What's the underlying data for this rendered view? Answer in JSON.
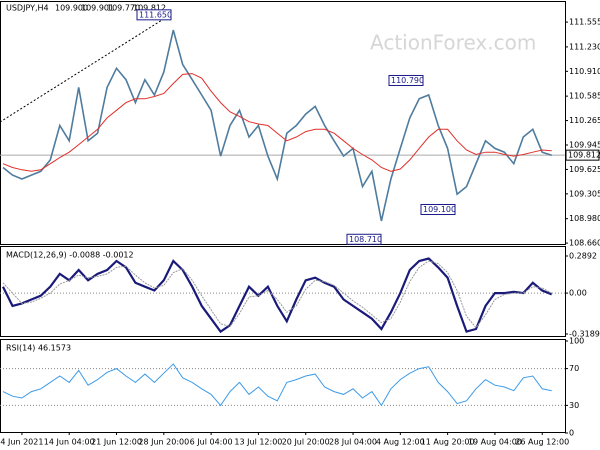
{
  "chart_data": [
    {
      "type": "line",
      "header": [
        "USDJPY,H4",
        "109.900",
        "109.901",
        "109.770",
        "109.812"
      ],
      "watermark": "ActionForex.com",
      "categories": [
        null,
        null,
        "4 Jun 2021",
        null,
        null,
        null,
        null,
        "14 Jun 04:00",
        null,
        null,
        null,
        null,
        "21 Jun 12:00",
        null,
        null,
        null,
        null,
        "28 Jun 20:00",
        null,
        null,
        null,
        null,
        "6 Jul 04:00",
        null,
        null,
        null,
        null,
        "13 Jul 12:00",
        null,
        null,
        null,
        null,
        "20 Jul 20:00",
        null,
        null,
        null,
        null,
        "28 Jul 04:00",
        null,
        null,
        null,
        null,
        "4 Aug 12:00",
        null,
        null,
        null,
        null,
        "11 Aug 20:00",
        null,
        null,
        null,
        null,
        "19 Aug 04:00",
        null,
        null,
        null,
        null,
        "26 Aug 12:00",
        null
      ],
      "series": [
        {
          "name": "USDJPY",
          "color": "#4f7c9e",
          "values": [
            109.65,
            109.55,
            109.5,
            109.55,
            109.6,
            109.75,
            110.2,
            110.0,
            110.7,
            110.0,
            110.1,
            110.7,
            110.95,
            110.8,
            110.5,
            110.8,
            110.6,
            110.9,
            111.45,
            111.0,
            110.8,
            110.6,
            110.4,
            109.8,
            110.2,
            110.4,
            110.05,
            110.2,
            109.8,
            109.5,
            110.1,
            110.2,
            110.35,
            110.45,
            110.2,
            110.0,
            109.8,
            109.9,
            109.4,
            109.6,
            108.95,
            109.5,
            109.9,
            110.3,
            110.55,
            110.6,
            110.2,
            109.9,
            109.3,
            109.4,
            109.7,
            110.0,
            109.9,
            109.85,
            109.7,
            110.05,
            110.15,
            109.85,
            109.81
          ]
        },
        {
          "name": "MA",
          "color": "#e0302a",
          "values": [
            109.7,
            109.65,
            109.62,
            109.6,
            109.62,
            109.7,
            109.78,
            109.85,
            109.95,
            110.05,
            110.15,
            110.3,
            110.4,
            110.5,
            110.55,
            110.55,
            110.58,
            110.62,
            110.75,
            110.87,
            110.88,
            110.82,
            110.65,
            110.5,
            110.38,
            110.32,
            110.25,
            110.22,
            110.2,
            110.1,
            110.0,
            110.05,
            110.12,
            110.15,
            110.15,
            110.1,
            110.0,
            109.9,
            109.82,
            109.75,
            109.65,
            109.6,
            109.63,
            109.75,
            109.9,
            110.05,
            110.15,
            110.15,
            110.0,
            109.88,
            109.82,
            109.85,
            109.85,
            109.82,
            109.8,
            109.82,
            109.85,
            109.88,
            109.87
          ]
        }
      ],
      "ylim": [
        108.635,
        111.805
      ],
      "yticks": [
        {
          "value": 111.555,
          "label": "111.555"
        },
        {
          "value": 111.23,
          "label": "111.230"
        },
        {
          "value": 110.91,
          "label": "110.910"
        },
        {
          "value": 110.585,
          "label": "110.585"
        },
        {
          "value": 110.265,
          "label": "110.265"
        },
        {
          "value": 109.945,
          "label": "109.945"
        },
        {
          "value": 109.625,
          "label": "109.625"
        },
        {
          "value": 109.305,
          "label": "109.305"
        },
        {
          "value": 108.98,
          "label": "108.980"
        },
        {
          "value": 108.66,
          "label": "108.660"
        }
      ],
      "annotations": [
        {
          "value": 111.65,
          "label": "111.650"
        },
        {
          "value": 110.79,
          "label": "110.790"
        },
        {
          "value": 108.71,
          "label": "108.710"
        },
        {
          "value": 109.1,
          "label": "109.100"
        }
      ],
      "current_price": {
        "value": 109.812,
        "label": "109.812"
      }
    },
    {
      "type": "line",
      "title": "MACD(12,26,9) -0.0088 -0.0012",
      "series": [
        {
          "name": "MACD",
          "color": "#1a1a7a",
          "values": [
            0.05,
            -0.1,
            -0.08,
            -0.05,
            -0.02,
            0.05,
            0.15,
            0.1,
            0.18,
            0.1,
            0.15,
            0.18,
            0.25,
            0.2,
            0.08,
            0.05,
            0.02,
            0.1,
            0.25,
            0.18,
            0.05,
            -0.1,
            -0.2,
            -0.3,
            -0.25,
            -0.1,
            0.05,
            -0.02,
            0.05,
            -0.1,
            -0.22,
            -0.05,
            0.1,
            0.12,
            0.08,
            0.05,
            -0.05,
            -0.1,
            -0.15,
            -0.2,
            -0.28,
            -0.15,
            0.0,
            0.18,
            0.25,
            0.27,
            0.2,
            0.12,
            -0.1,
            -0.3,
            -0.28,
            -0.1,
            0.0,
            0.0,
            0.01,
            0.0,
            0.08,
            0.02,
            -0.01
          ]
        },
        {
          "name": "Signal",
          "color": "#999999",
          "values": [
            0.08,
            0.0,
            -0.08,
            -0.07,
            -0.04,
            0.0,
            0.07,
            0.1,
            0.14,
            0.12,
            0.13,
            0.15,
            0.2,
            0.21,
            0.14,
            0.08,
            0.04,
            0.06,
            0.16,
            0.19,
            0.1,
            -0.02,
            -0.13,
            -0.24,
            -0.26,
            -0.16,
            -0.03,
            -0.02,
            0.02,
            -0.05,
            -0.15,
            -0.1,
            0.03,
            0.1,
            0.09,
            0.06,
            0.0,
            -0.06,
            -0.11,
            -0.17,
            -0.23,
            -0.2,
            -0.07,
            0.09,
            0.2,
            0.25,
            0.23,
            0.16,
            0.02,
            -0.18,
            -0.27,
            -0.17,
            -0.05,
            -0.01,
            0.0,
            0.0,
            0.05,
            0.04,
            0.0
          ]
        }
      ],
      "ylim": [
        -0.3423,
        0.3516
      ],
      "yticks": [
        0.2892,
        {
          "value": 0,
          "label": "0.00"
        },
        -0.3189
      ],
      "levels": [
        0
      ]
    },
    {
      "type": "line",
      "title": "RSI(14) 46.1573",
      "series": [
        {
          "name": "RSI",
          "color": "#3d9be9",
          "values": [
            45,
            40,
            38,
            45,
            48,
            55,
            62,
            55,
            68,
            52,
            58,
            66,
            70,
            62,
            55,
            64,
            55,
            65,
            75,
            60,
            55,
            48,
            42,
            30,
            45,
            55,
            42,
            50,
            40,
            35,
            55,
            58,
            62,
            64,
            50,
            45,
            42,
            48,
            38,
            45,
            30,
            48,
            58,
            65,
            70,
            72,
            55,
            45,
            32,
            35,
            48,
            58,
            52,
            50,
            46,
            60,
            62,
            48,
            46
          ]
        }
      ],
      "ylim": [
        0,
        100
      ],
      "yticks": [
        100,
        70,
        30,
        0
      ],
      "levels": [
        70,
        30
      ]
    }
  ]
}
